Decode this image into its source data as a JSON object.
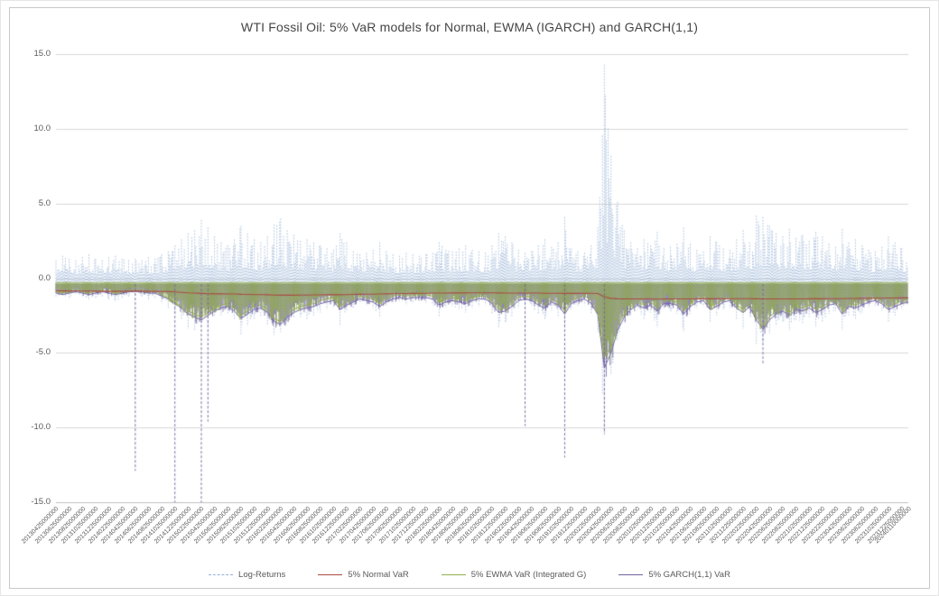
{
  "chart_data": {
    "type": "line",
    "title": "WTI Fossil Oil: 5% VaR models for Normal, EWMA (IGARCH) and GARCH(1,1)",
    "ylim": [
      -15,
      15
    ],
    "yticks": [
      15.0,
      10.0,
      5.0,
      0.0,
      -5.0,
      -10.0,
      -15.0
    ],
    "ytick_labels": [
      "15.0",
      "10.0",
      "5.0",
      "0.0",
      "-5.0",
      "-10.0",
      "-15.0"
    ],
    "grid": "horizontal",
    "legend_position": "bottom",
    "months": 130,
    "x_start": "2013-04",
    "x_end": "2024-01",
    "plot": {
      "background": "#ffffff",
      "gridline_color": "#d9d9d9",
      "axis_line_color": "#bfbfbf"
    },
    "xtick_labels": [
      "20130425000000",
      "20130625000000",
      "20130825000000",
      "20131025000000",
      "20131225000000",
      "20140225000000",
      "20140425000000",
      "20140625000000",
      "20140825000000",
      "20141025000000",
      "20141225000000",
      "20150225000000",
      "20150425000000",
      "20150625000000",
      "20150825000000",
      "20151025000000",
      "20151225000000",
      "20160225000000",
      "20160425000000",
      "20160625000000",
      "20160825000000",
      "20161025000000",
      "20161225000000",
      "20170225000000",
      "20170425000000",
      "20170625000000",
      "20170825000000",
      "20171025000000",
      "20171225000000",
      "20180225000000",
      "20180425000000",
      "20180625000000",
      "20180825000000",
      "20181025000000",
      "20181225000000",
      "20190225000000",
      "20190425000000",
      "20190625000000",
      "20190825000000",
      "20191025000000",
      "20191225000000",
      "20200225000000",
      "20200425000000",
      "20200625000000",
      "20200825000000",
      "20201025000000",
      "20201225000000",
      "20210225000000",
      "20210425000000",
      "20210625000000",
      "20210825000000",
      "20211025000000",
      "20211225000000",
      "20220225000000",
      "20220425000000",
      "20220625000000",
      "20220825000000",
      "20221025000000",
      "20221225000000",
      "20230225000000",
      "20230425000000",
      "20230625000000",
      "20230825000000",
      "20231025000000",
      "20231225000000",
      "20240110000000"
    ],
    "series": [
      {
        "name": "Log-Returns",
        "color": "#97b2d6",
        "style": "dashed-spikes",
        "envelope_hi": [
          1.2,
          1.5,
          1.3,
          1.2,
          1.4,
          1.6,
          1.3,
          1.2,
          1.4,
          1.5,
          1.3,
          1.2,
          1.3,
          1.2,
          1.4,
          1.3,
          1.6,
          1.8,
          2.2,
          2.6,
          3.0,
          3.2,
          3.9,
          3.4,
          2.8,
          2.4,
          2.2,
          2.6,
          3.5,
          3.0,
          2.6,
          2.4,
          2.8,
          3.6,
          4.0,
          3.2,
          2.9,
          2.5,
          2.6,
          2.4,
          2.2,
          2.0,
          1.9,
          3.0,
          2.4,
          1.8,
          1.6,
          1.7,
          1.9,
          2.4,
          1.8,
          1.6,
          1.5,
          1.7,
          1.6,
          1.5,
          1.6,
          1.7,
          2.4,
          1.9,
          1.8,
          2.0,
          2.2,
          1.9,
          1.8,
          1.7,
          2.2,
          3.0,
          2.8,
          2.4,
          1.9,
          1.7,
          1.8,
          2.2,
          2.6,
          2.1,
          2.4,
          4.1,
          2.0,
          1.8,
          1.7,
          2.2,
          3.4,
          14.3,
          8.2,
          5.1,
          3.2,
          2.4,
          2.0,
          2.6,
          2.2,
          3.1,
          2.0,
          2.1,
          2.3,
          3.4,
          2.3,
          1.9,
          1.8,
          2.8,
          2.4,
          2.0,
          1.9,
          2.6,
          3.2,
          2.4,
          4.2,
          4.1,
          3.5,
          3.0,
          2.8,
          3.3,
          2.7,
          2.9,
          2.5,
          3.1,
          2.8,
          2.3,
          2.1,
          3.3,
          2.4,
          2.6,
          2.2,
          1.9,
          1.8,
          2.1,
          2.8,
          2.4,
          2.0,
          1.9
        ],
        "envelope_lo": [
          -1.3,
          -1.2,
          -1.4,
          -1.1,
          -1.3,
          -1.5,
          -1.4,
          -1.3,
          -1.5,
          -1.6,
          -1.4,
          -1.3,
          -1.2,
          -1.3,
          -1.5,
          -1.4,
          -1.7,
          -2.0,
          -2.4,
          -2.8,
          -3.4,
          -3.5,
          -3.0,
          -3.2,
          -2.6,
          -2.5,
          -2.4,
          -2.8,
          -3.8,
          -3.2,
          -2.8,
          -2.6,
          -3.1,
          -3.8,
          -3.6,
          -3.0,
          -2.7,
          -2.6,
          -2.8,
          -2.5,
          -2.3,
          -2.1,
          -2.0,
          -3.2,
          -2.2,
          -2.0,
          -1.7,
          -1.8,
          -2.0,
          -2.6,
          -1.9,
          -1.7,
          -1.6,
          -1.8,
          -1.7,
          -1.6,
          -1.7,
          -1.8,
          -2.6,
          -2.0,
          -1.9,
          -2.1,
          -2.3,
          -2.0,
          -1.9,
          -1.8,
          -2.4,
          -3.3,
          -3.0,
          -2.6,
          -2.0,
          -1.8,
          -1.9,
          -2.4,
          -2.8,
          -2.2,
          -2.6,
          -3.2,
          -2.1,
          -1.9,
          -1.8,
          -2.4,
          -3.6,
          -10.5,
          -6.4,
          -4.2,
          -3.0,
          -2.5,
          -2.1,
          -2.8,
          -2.3,
          -3.3,
          -2.1,
          -2.2,
          -2.4,
          -3.6,
          -2.4,
          -2.0,
          -1.9,
          -3.0,
          -2.5,
          -2.1,
          -2.0,
          -2.8,
          -3.4,
          -2.5,
          -4.4,
          -4.3,
          -3.7,
          -3.2,
          -2.9,
          -3.5,
          -2.8,
          -3.0,
          -2.6,
          -3.3,
          -2.9,
          -2.4,
          -2.2,
          -3.5,
          -2.5,
          -2.7,
          -2.3,
          -2.0,
          -1.9,
          -2.2,
          -2.9,
          -2.5,
          -2.1,
          -2.0
        ]
      },
      {
        "name": "5% Normal VaR",
        "color": "#a94a42",
        "style": "line",
        "values": [
          -0.84,
          -0.85,
          -0.85,
          -0.86,
          -0.86,
          -0.87,
          -0.87,
          -0.88,
          -0.88,
          -0.88,
          -0.88,
          -0.87,
          -0.87,
          -0.87,
          -0.88,
          -0.88,
          -0.89,
          -0.9,
          -0.92,
          -0.95,
          -0.98,
          -1.0,
          -1.02,
          -1.04,
          -1.05,
          -1.05,
          -1.06,
          -1.06,
          -1.08,
          -1.09,
          -1.1,
          -1.1,
          -1.11,
          -1.13,
          -1.14,
          -1.14,
          -1.14,
          -1.13,
          -1.13,
          -1.12,
          -1.12,
          -1.11,
          -1.1,
          -1.11,
          -1.1,
          -1.09,
          -1.08,
          -1.07,
          -1.07,
          -1.06,
          -1.05,
          -1.04,
          -1.03,
          -1.03,
          -1.02,
          -1.01,
          -1.01,
          -1.0,
          -1.0,
          -1.0,
          -0.99,
          -0.99,
          -0.99,
          -0.98,
          -0.98,
          -0.98,
          -0.98,
          -0.99,
          -1.0,
          -1.0,
          -1.0,
          -1.0,
          -1.0,
          -1.0,
          -1.01,
          -1.01,
          -1.01,
          -1.02,
          -1.02,
          -1.02,
          -1.01,
          -1.01,
          -1.03,
          -1.25,
          -1.35,
          -1.38,
          -1.39,
          -1.39,
          -1.39,
          -1.39,
          -1.39,
          -1.4,
          -1.39,
          -1.39,
          -1.39,
          -1.39,
          -1.39,
          -1.38,
          -1.38,
          -1.38,
          -1.38,
          -1.37,
          -1.37,
          -1.37,
          -1.37,
          -1.37,
          -1.38,
          -1.39,
          -1.39,
          -1.39,
          -1.39,
          -1.39,
          -1.39,
          -1.39,
          -1.38,
          -1.38,
          -1.38,
          -1.37,
          -1.37,
          -1.37,
          -1.36,
          -1.36,
          -1.35,
          -1.35,
          -1.34,
          -1.34,
          -1.33,
          -1.33,
          -1.32,
          -1.32
        ]
      },
      {
        "name": "5% EWMA VaR (Integrated G)",
        "color": "#93ad4f",
        "style": "band",
        "values": [
          -0.9,
          -1.0,
          -0.9,
          -0.8,
          -0.9,
          -1.0,
          -0.9,
          -0.8,
          -0.9,
          -1.0,
          -0.9,
          -0.8,
          -0.8,
          -0.8,
          -0.9,
          -0.9,
          -1.1,
          -1.3,
          -1.6,
          -1.9,
          -2.2,
          -2.4,
          -2.6,
          -2.3,
          -2.0,
          -1.8,
          -1.7,
          -2.0,
          -2.5,
          -2.2,
          -1.9,
          -1.8,
          -2.1,
          -2.7,
          -2.9,
          -2.4,
          -2.1,
          -1.9,
          -1.8,
          -1.7,
          -1.5,
          -1.4,
          -1.3,
          -1.9,
          -1.6,
          -1.4,
          -1.2,
          -1.3,
          -1.4,
          -1.7,
          -1.4,
          -1.2,
          -1.1,
          -1.2,
          -1.1,
          -1.1,
          -1.1,
          -1.2,
          -1.6,
          -1.4,
          -1.3,
          -1.4,
          -1.5,
          -1.3,
          -1.2,
          -1.2,
          -1.5,
          -2.1,
          -2.0,
          -1.7,
          -1.3,
          -1.2,
          -1.3,
          -1.6,
          -1.8,
          -1.4,
          -1.6,
          -2.2,
          -1.5,
          -1.3,
          -1.2,
          -1.5,
          -2.2,
          -5.2,
          -4.6,
          -3.2,
          -2.4,
          -1.9,
          -1.6,
          -1.8,
          -1.6,
          -2.0,
          -1.5,
          -1.5,
          -1.6,
          -2.2,
          -1.7,
          -1.4,
          -1.3,
          -1.9,
          -1.7,
          -1.4,
          -1.3,
          -1.8,
          -2.1,
          -1.7,
          -2.6,
          -3.2,
          -2.6,
          -2.2,
          -2.0,
          -2.3,
          -1.9,
          -2.0,
          -1.8,
          -2.1,
          -1.9,
          -1.6,
          -1.5,
          -2.2,
          -1.7,
          -1.8,
          -1.6,
          -1.4,
          -1.3,
          -1.5,
          -1.9,
          -1.7,
          -1.5,
          -1.4
        ]
      },
      {
        "name": "5% GARCH(1,1) VaR",
        "color": "#70619e",
        "style": "band",
        "values": [
          -1.0,
          -1.1,
          -1.0,
          -0.9,
          -1.0,
          -1.1,
          -1.0,
          -0.9,
          -1.0,
          -1.1,
          -1.0,
          -0.9,
          -0.9,
          -0.9,
          -1.0,
          -1.0,
          -1.2,
          -1.4,
          -1.7,
          -2.0,
          -2.4,
          -2.6,
          -2.8,
          -2.5,
          -2.2,
          -2.0,
          -1.9,
          -2.2,
          -2.7,
          -2.4,
          -2.1,
          -2.0,
          -2.3,
          -2.9,
          -3.1,
          -2.6,
          -2.3,
          -2.1,
          -2.0,
          -1.9,
          -1.7,
          -1.6,
          -1.5,
          -2.1,
          -1.8,
          -1.6,
          -1.4,
          -1.5,
          -1.6,
          -1.9,
          -1.6,
          -1.4,
          -1.3,
          -1.4,
          -1.3,
          -1.3,
          -1.3,
          -1.4,
          -1.8,
          -1.6,
          -1.5,
          -1.6,
          -1.7,
          -1.5,
          -1.4,
          -1.4,
          -1.7,
          -2.3,
          -2.2,
          -1.9,
          -1.5,
          -1.4,
          -1.5,
          -1.8,
          -2.0,
          -1.6,
          -1.8,
          -2.4,
          -1.7,
          -1.5,
          -1.4,
          -1.7,
          -2.4,
          -6.0,
          -5.0,
          -3.5,
          -2.6,
          -2.1,
          -1.8,
          -2.0,
          -1.8,
          -2.2,
          -1.7,
          -1.7,
          -1.8,
          -2.4,
          -1.9,
          -1.6,
          -1.5,
          -2.1,
          -1.9,
          -1.6,
          -1.5,
          -2.0,
          -2.3,
          -1.9,
          -2.8,
          -3.4,
          -2.8,
          -2.4,
          -2.2,
          -2.5,
          -2.1,
          -2.2,
          -2.0,
          -2.3,
          -2.1,
          -1.8,
          -1.7,
          -2.4,
          -1.9,
          -2.0,
          -1.8,
          -1.6,
          -1.5,
          -1.7,
          -2.1,
          -1.9,
          -1.7,
          -1.6
        ],
        "spikes": [
          {
            "index": 12,
            "date": "2014-04",
            "value": -12.9
          },
          {
            "index": 18,
            "date": "2014-10",
            "value": -15.0
          },
          {
            "index": 22,
            "date": "2015-02",
            "value": -15.0
          },
          {
            "index": 23,
            "date": "2015-03",
            "value": -9.6
          },
          {
            "index": 71,
            "date": "2019-03",
            "value": -9.9
          },
          {
            "index": 77,
            "date": "2019-09",
            "value": -12.0
          },
          {
            "index": 83,
            "date": "2020-03",
            "value": -10.4
          },
          {
            "index": 107,
            "date": "2022-03",
            "value": -5.7
          }
        ]
      }
    ]
  }
}
